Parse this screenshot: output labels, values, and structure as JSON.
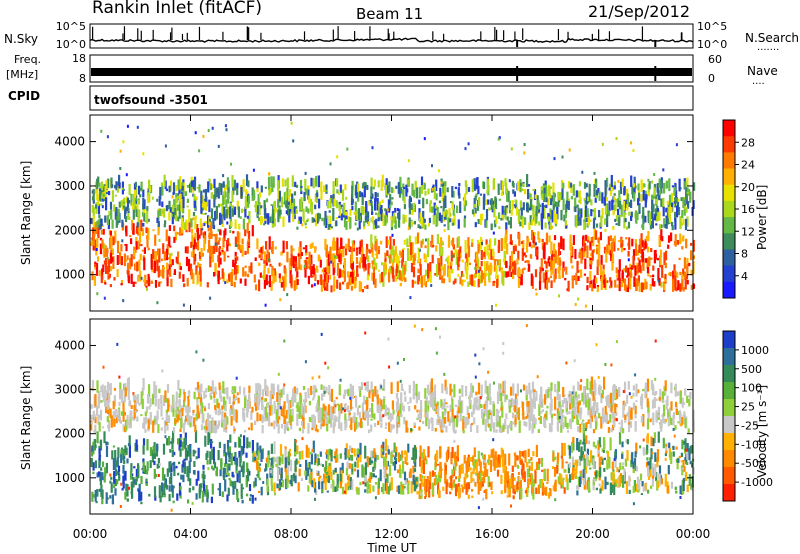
{
  "header": {
    "station": "Rankin Inlet (fitACF)",
    "beam": "Beam 11",
    "date": "21/Sep/2012"
  },
  "side_labels": {
    "nsky": "N.Sky",
    "nsearch": "N.Search",
    "nsearch_dots": "·······",
    "freq_line1": "Freq.",
    "freq_line2": "[MHz]",
    "nave": "Nave",
    "nave_dots": "····",
    "cpid": "CPID",
    "cpid_value": "twofsound -3501"
  },
  "noise_panel": {
    "left_ticks": [
      "10^5",
      "10^0"
    ],
    "right_ticks": [
      "10^5",
      "10^0"
    ]
  },
  "freq_panel": {
    "left_ticks": [
      "18",
      "8"
    ],
    "right_ticks": [
      "60",
      "0"
    ]
  },
  "axes": {
    "ylabel": "Slant Range [km]",
    "xlabel": "Time UT",
    "xticks": [
      "00:00",
      "04:00",
      "08:00",
      "12:00",
      "16:00",
      "20:00",
      "00:00"
    ],
    "yticks": [
      "1000",
      "2000",
      "3000",
      "4000"
    ]
  },
  "colorbars": {
    "power": {
      "label": "Power [dB]",
      "ticks": [
        "28",
        "24",
        "20",
        "16",
        "12",
        "8",
        "4"
      ],
      "colors": [
        "#ff0000",
        "#ff3a00",
        "#ff7a00",
        "#ffb000",
        "#e8e000",
        "#a9d81c",
        "#63b846",
        "#3d8c5a",
        "#2e5f9e",
        "#2340d0",
        "#1a1aff"
      ]
    },
    "velocity": {
      "label": "Velocity [m s⁻¹]",
      "ticks": [
        "1000",
        "500",
        "100",
        "25",
        "-25",
        "-100",
        "-500",
        "-1000"
      ],
      "colors": [
        "#1d3ec8",
        "#2d6f9a",
        "#358a5a",
        "#58b03a",
        "#8fd03a",
        "#c8c8c8",
        "#ffb000",
        "#ff8a00",
        "#ff5a00",
        "#ff2000"
      ]
    }
  },
  "chart_data": [
    {
      "type": "line",
      "title": "N.Sky / N.Search",
      "x_range_hours": [
        0,
        24
      ],
      "yscale": "log",
      "ylim": [
        1,
        100000
      ]
    },
    {
      "type": "line",
      "title": "Freq. / Nave",
      "x_range_hours": [
        0,
        24
      ],
      "ylim_freq_mhz": [
        8,
        18
      ],
      "ylim_nave": [
        0,
        60
      ]
    },
    {
      "type": "heatmap",
      "name": "Power",
      "x_range_hours": [
        0,
        24
      ],
      "y_range_km": [
        180,
        4600
      ],
      "units": "dB",
      "bands": [
        {
          "t_start": 0.0,
          "t_end": 6.5,
          "r_low": 700,
          "r_high": 2000,
          "level": "strong"
        },
        {
          "t_start": 6.5,
          "t_end": 11.0,
          "r_low": 600,
          "r_high": 1600,
          "level": "strong"
        },
        {
          "t_start": 11.0,
          "t_end": 16.5,
          "r_low": 700,
          "r_high": 1700,
          "level": "medium"
        },
        {
          "t_start": 16.5,
          "t_end": 24.0,
          "r_low": 600,
          "r_high": 1800,
          "level": "strong"
        },
        {
          "t_start": 0.0,
          "t_end": 24.0,
          "r_low": 2000,
          "r_high": 3000,
          "level": "weak"
        }
      ]
    },
    {
      "type": "heatmap",
      "name": "Velocity",
      "x_range_hours": [
        0,
        24
      ],
      "y_range_km": [
        180,
        4600
      ],
      "units": "m s^-1",
      "bands": [
        {
          "t_start": 0.0,
          "t_end": 6.5,
          "r_low": 400,
          "r_high": 1800,
          "level": "positive"
        },
        {
          "t_start": 6.5,
          "t_end": 13.0,
          "r_low": 600,
          "r_high": 1600,
          "level": "mixed"
        },
        {
          "t_start": 13.0,
          "t_end": 19.0,
          "r_low": 500,
          "r_high": 1500,
          "level": "negative"
        },
        {
          "t_start": 19.0,
          "t_end": 24.0,
          "r_low": 600,
          "r_high": 1800,
          "level": "mixed"
        },
        {
          "t_start": 0.0,
          "t_end": 24.0,
          "r_low": 2000,
          "r_high": 3000,
          "level": "near-zero"
        }
      ]
    }
  ]
}
